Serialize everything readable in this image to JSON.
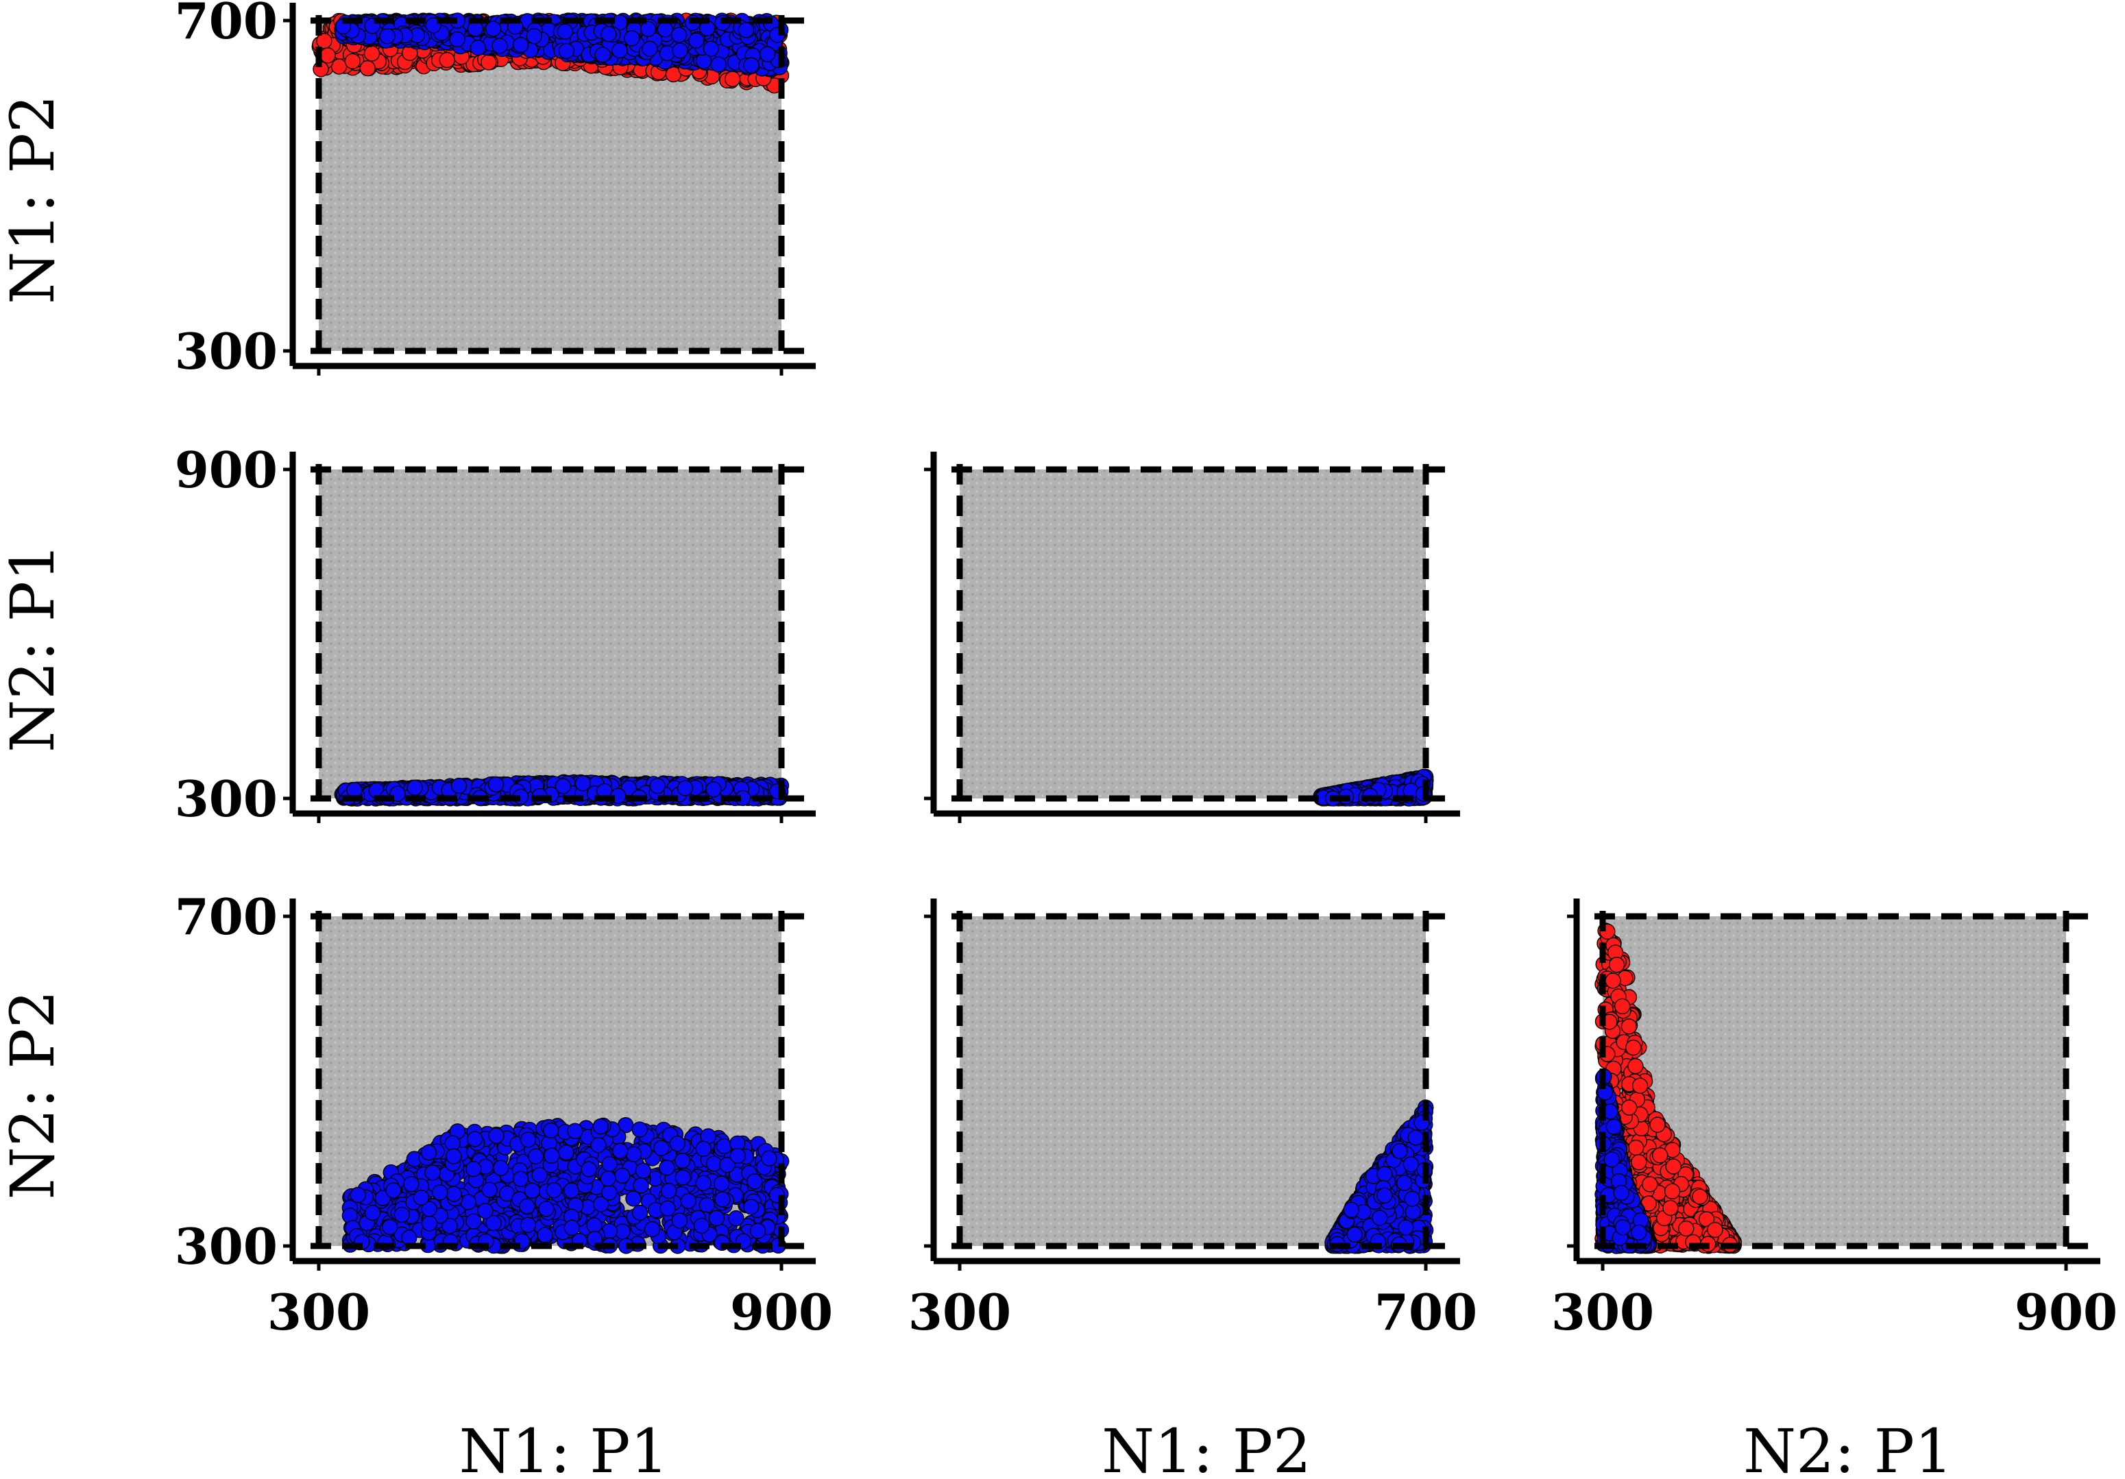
{
  "chart_data": {
    "type": "scatter",
    "variables": [
      "N1: P1",
      "N1: P2",
      "N2: P1",
      "N2: P2"
    ],
    "ranges": {
      "N1: P1": [
        300,
        900
      ],
      "N1: P2": [
        300,
        700
      ],
      "N2: P1": [
        300,
        900
      ],
      "N2: P2": [
        300,
        700
      ]
    },
    "colors": {
      "red": "#ff1a1a",
      "blue": "#0a0af0",
      "feasible_fill": "#b4b4b4"
    },
    "panels": [
      {
        "id": "n1p1-vs-n1p2",
        "x": "N1: P1",
        "y": "N1: P2",
        "xticks": [],
        "yticks": [
          "300",
          "700"
        ],
        "red_region": {
          "x_range": [
            300,
            900
          ],
          "y_bands": [
            [
              300,
              640,
              700
            ],
            [
              600,
              650,
              700
            ],
            [
              900,
              620,
              700
            ]
          ]
        },
        "blue_region": {
          "x_range": [
            330,
            900
          ],
          "y_bands": [
            [
              330,
              680,
              700
            ],
            [
              600,
              660,
              700
            ],
            [
              900,
              640,
              700
            ]
          ]
        }
      },
      {
        "id": "n1p1-vs-n2p1",
        "x": "N1: P1",
        "y": "N2: P1",
        "xticks": [],
        "yticks": [
          "300",
          "900"
        ],
        "blue_region": {
          "x_range": [
            330,
            900
          ],
          "y_bands": [
            [
              330,
              300,
              315
            ],
            [
              600,
              300,
              330
            ],
            [
              900,
              300,
              325
            ]
          ]
        }
      },
      {
        "id": "n1p2-vs-n2p1",
        "x": "N1: P2",
        "y": "N2: P1",
        "xticks": [],
        "yticks": [],
        "blue_region": {
          "x_range": [
            610,
            700
          ],
          "y_bands": [
            [
              610,
              300,
              305
            ],
            [
              700,
              300,
              340
            ]
          ]
        }
      },
      {
        "id": "n1p1-vs-n2p2",
        "x": "N1: P1",
        "y": "N2: P2",
        "xticks": [
          "300",
          "900"
        ],
        "yticks": [
          "300",
          "700"
        ],
        "blue_region": {
          "x_range": [
            340,
            900
          ],
          "y_bands": [
            [
              340,
              300,
              360
            ],
            [
              480,
              300,
              440
            ],
            [
              700,
              300,
              450
            ],
            [
              900,
              300,
              420
            ]
          ]
        }
      },
      {
        "id": "n1p2-vs-n2p2",
        "x": "N1: P2",
        "y": "N2: P2",
        "xticks": [
          "300",
          "700"
        ],
        "yticks": [],
        "blue_region": {
          "x_range": [
            620,
            700
          ],
          "y_bands": [
            [
              620,
              300,
              305
            ],
            [
              650,
              300,
              380
            ],
            [
              700,
              300,
              470
            ]
          ]
        }
      },
      {
        "id": "n2p1-vs-n2p2",
        "x": "N2: P1",
        "y": "N2: P2",
        "xticks": [
          "300",
          "900"
        ],
        "yticks": [],
        "red_region": {
          "x_range": [
            300,
            470
          ],
          "y_bands": [
            [
              300,
              300,
              700
            ],
            [
              330,
              300,
              640
            ],
            [
              360,
              300,
              470
            ],
            [
              470,
              300,
              305
            ]
          ]
        },
        "blue_region": {
          "x_range": [
            300,
            360
          ],
          "y_bands": [
            [
              300,
              300,
              520
            ],
            [
              330,
              300,
              380
            ],
            [
              360,
              300,
              305
            ]
          ]
        }
      }
    ],
    "xlabel_row": [
      "N1: P1",
      "N1: P2",
      "N2: P1"
    ],
    "ylabel_col": [
      "N1: P2",
      "N2: P1",
      "N2: P2"
    ]
  }
}
